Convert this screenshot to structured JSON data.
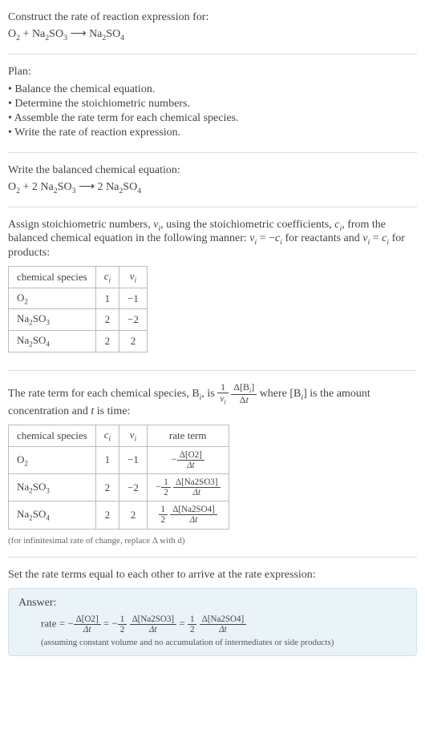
{
  "q": {
    "title": "Construct the rate of reaction expression for:",
    "eq_lhs_o2": "O",
    "eq_lhs_o2_sub": "2",
    "eq_plus1": " + ",
    "eq_lhs_na2so3_na": "Na",
    "eq_lhs_na2so3_2a": "2",
    "eq_lhs_na2so3_s": "SO",
    "eq_lhs_na2so3_3": "3",
    "eq_arrow": " ⟶ ",
    "eq_rhs_na2so4_na": "Na",
    "eq_rhs_na2so4_2": "2",
    "eq_rhs_na2so4_s": "SO",
    "eq_rhs_na2so4_4": "4"
  },
  "plan": {
    "title": "Plan:",
    "items": [
      "• Balance the chemical equation.",
      "• Determine the stoichiometric numbers.",
      "• Assemble the rate term for each chemical species.",
      "• Write the rate of reaction expression."
    ]
  },
  "balanced": {
    "title": "Write the balanced chemical equation:",
    "c_o2": "O",
    "c_o2s": "2",
    "plus": " + 2 ",
    "na2so3_na": "Na",
    "na2so3_2": "2",
    "na2so3_so": "SO",
    "na2so3_3": "3",
    "arrow": " ⟶ 2 ",
    "na2so4_na": "Na",
    "na2so4_2": "2",
    "na2so4_so": "SO",
    "na2so4_4": "4"
  },
  "assign": {
    "text1": "Assign stoichiometric numbers, ",
    "nu": "ν",
    "nu_sub": "i",
    "text2": ", using the stoichiometric coefficients, ",
    "c": "c",
    "c_sub": "i",
    "text3": ", from the balanced chemical equation in the following manner: ",
    "eq1_lhs_nu": "ν",
    "eq1_lhs_sub": "i",
    "eq1_eq": " = −",
    "eq1_rhs_c": "c",
    "eq1_rhs_sub": "i",
    "text4": " for reactants and ",
    "eq2_lhs_nu": "ν",
    "eq2_lhs_sub": "i",
    "eq2_eq": " = ",
    "eq2_rhs_c": "c",
    "eq2_rhs_sub": "i",
    "text5": " for products:"
  },
  "table1": {
    "h1": "chemical species",
    "h2_c": "c",
    "h2_sub": "i",
    "h3_nu": "ν",
    "h3_sub": "i",
    "r1_sp_a": "O",
    "r1_sp_s": "2",
    "r1_c": "1",
    "r1_nu": "−1",
    "r2_sp_a": "Na",
    "r2_sp_s1": "2",
    "r2_sp_b": "SO",
    "r2_sp_s2": "3",
    "r2_c": "2",
    "r2_nu": "−2",
    "r3_sp_a": "Na",
    "r3_sp_s1": "2",
    "r3_sp_b": "SO",
    "r3_sp_s2": "4",
    "r3_c": "2",
    "r3_nu": "2"
  },
  "rateterm": {
    "t1": "The rate term for each chemical species, B",
    "t1_sub": "i",
    "t2": ", is ",
    "f1_num": "1",
    "f1_den_nu": "ν",
    "f1_den_sub": "i",
    "f2_num_d": "Δ[B",
    "f2_num_sub": "i",
    "f2_num_close": "]",
    "f2_den_d": "Δ",
    "f2_den_t": "t",
    "t3": " where [B",
    "t3_sub": "i",
    "t3b": "] is the amount concentration and ",
    "t4_t": "t",
    "t5": " is time:"
  },
  "table2": {
    "h1": "chemical species",
    "h2_c": "c",
    "h2_sub": "i",
    "h3_nu": "ν",
    "h3_sub": "i",
    "h4": "rate term",
    "r1_sp_a": "O",
    "r1_sp_s": "2",
    "r1_c": "1",
    "r1_nu": "−1",
    "r1_rt_neg": "−",
    "r1_rt_num": "Δ[O2]",
    "r1_rt_den": "Δt",
    "r2_sp_a": "Na",
    "r2_sp_s1": "2",
    "r2_sp_b": "SO",
    "r2_sp_s2": "3",
    "r2_c": "2",
    "r2_nu": "−2",
    "r2_rt_neg": "−",
    "r2_rt_f1n": "1",
    "r2_rt_f1d": "2",
    "r2_rt_num": "Δ[Na2SO3]",
    "r2_rt_den": "Δt",
    "r3_sp_a": "Na",
    "r3_sp_s1": "2",
    "r3_sp_b": "SO",
    "r3_sp_s2": "4",
    "r3_c": "2",
    "r3_nu": "2",
    "r3_rt_f1n": "1",
    "r3_rt_f1d": "2",
    "r3_rt_num": "Δ[Na2SO4]",
    "r3_rt_den": "Δt",
    "note": "(for infinitesimal rate of change, replace Δ with d)"
  },
  "set": {
    "text": "Set the rate terms equal to each other to arrive at the rate expression:"
  },
  "answer": {
    "label": "Answer:",
    "rate": "rate = −",
    "f1_num": "Δ[O2]",
    "f1_den": "Δt",
    "eq1": " = −",
    "h1n": "1",
    "h1d": "2",
    "f2_num": "Δ[Na2SO3]",
    "f2_den": "Δt",
    "eq2": " = ",
    "h2n": "1",
    "h2d": "2",
    "f3_num": "Δ[Na2SO4]",
    "f3_den": "Δt",
    "note": "(assuming constant volume and no accumulation of intermediates or side products)"
  }
}
